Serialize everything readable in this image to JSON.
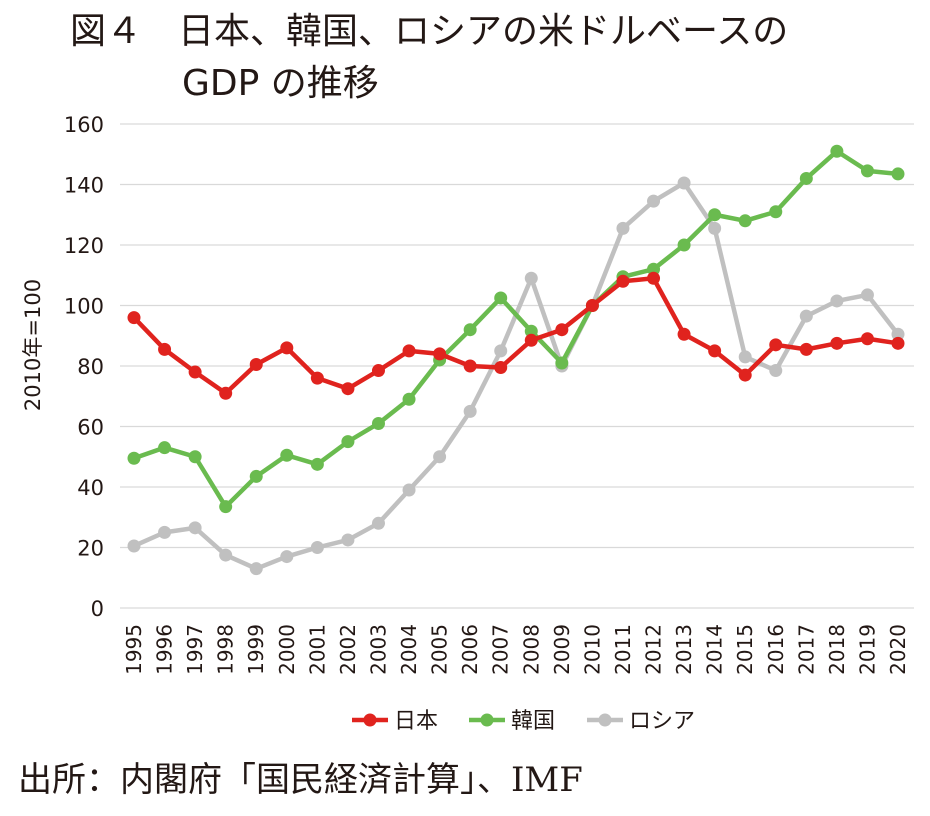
{
  "title": {
    "line1": "図４　日本、韓国、ロシアの米ドルベースの",
    "line2": "GDP の推移"
  },
  "source": "出所：内閣府「国民経済計算」、IMF",
  "colors": {
    "japan": "#e0231e",
    "korea": "#6abb4f",
    "russia": "#c0c0c0",
    "grid": "#d9d9d9",
    "text": "#231815"
  },
  "chart_data": {
    "type": "line",
    "title": "",
    "ylabel": "2010年=100",
    "xlabel": "",
    "ylim": [
      0,
      160
    ],
    "yticks": [
      0,
      20,
      40,
      60,
      80,
      100,
      120,
      140,
      160
    ],
    "grid": true,
    "legend_position": "bottom",
    "categories": [
      "1995",
      "1996",
      "1997",
      "1998",
      "1999",
      "2000",
      "2001",
      "2002",
      "2003",
      "2004",
      "2005",
      "2006",
      "2007",
      "2008",
      "2009",
      "2010",
      "2011",
      "2012",
      "2013",
      "2014",
      "2015",
      "2016",
      "2017",
      "2018",
      "2019",
      "2020"
    ],
    "series": [
      {
        "name": "日本",
        "color": "#e0231e",
        "values": [
          96,
          85.5,
          78,
          71,
          80.5,
          86,
          76,
          72.5,
          78.5,
          85,
          84,
          80,
          79.5,
          88.5,
          92,
          100,
          108,
          109,
          90.5,
          85,
          77,
          87,
          85.5,
          87.5,
          89,
          87.5
        ]
      },
      {
        "name": "韓国",
        "color": "#6abb4f",
        "values": [
          49.5,
          53,
          50,
          33.5,
          43.5,
          50.5,
          47.5,
          55,
          61,
          69,
          82,
          92,
          102.5,
          91.5,
          81,
          100,
          109.5,
          112,
          120,
          130,
          128,
          131,
          142,
          151,
          144.5,
          143.5
        ]
      },
      {
        "name": "ロシア",
        "color": "#c0c0c0",
        "values": [
          20.5,
          25,
          26.5,
          17.5,
          13,
          17,
          20,
          22.5,
          28,
          39,
          50,
          65,
          85,
          109,
          80,
          100,
          125.5,
          134.5,
          140.5,
          125.5,
          83,
          78.5,
          96.5,
          101.5,
          103.5,
          90.5
        ]
      }
    ]
  }
}
